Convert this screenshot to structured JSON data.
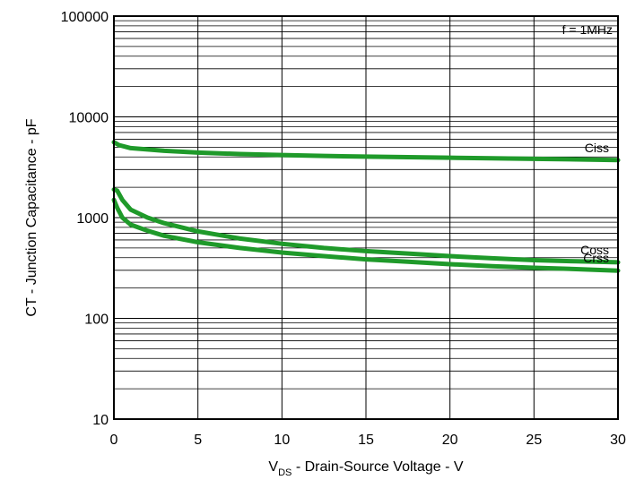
{
  "chart_data": {
    "type": "line",
    "title": "",
    "xlabel": {
      "main": "V",
      "sub": "DS",
      "rest": " - Drain-Source Voltage - V"
    },
    "ylabel": "CT - Junction Capacitance - pF",
    "annotation": "f = 1MHz",
    "xlim": [
      0,
      30
    ],
    "ylim": [
      10,
      100000
    ],
    "yscale": "log",
    "grid": true,
    "x_ticks": [
      "0",
      "5",
      "10",
      "15",
      "20",
      "25",
      "30"
    ],
    "y_ticks": [
      "10",
      "100",
      "1000",
      "10000",
      "100000"
    ],
    "series": [
      {
        "name": "Ciss",
        "x": [
          0,
          0.3,
          1,
          2,
          3,
          5,
          7.5,
          10,
          12.5,
          15,
          17.5,
          20,
          22.5,
          25,
          27.5,
          30
        ],
        "y": [
          5600,
          5250,
          4900,
          4750,
          4600,
          4420,
          4280,
          4180,
          4100,
          4030,
          3980,
          3930,
          3880,
          3830,
          3780,
          3720
        ]
      },
      {
        "name": "Coss",
        "x": [
          0,
          0.2,
          0.5,
          1,
          2,
          3,
          5,
          7.5,
          10,
          12.5,
          15,
          17.5,
          20,
          22.5,
          25,
          27.5,
          30
        ],
        "y": [
          1900,
          1850,
          1500,
          1200,
          1000,
          880,
          730,
          620,
          550,
          500,
          465,
          440,
          415,
          395,
          378,
          368,
          360
        ]
      },
      {
        "name": "Crss",
        "x": [
          0,
          0.2,
          0.5,
          1,
          2,
          3,
          5,
          7.5,
          10,
          12.5,
          15,
          17.5,
          20,
          22.5,
          25,
          27.5,
          30
        ],
        "y": [
          1500,
          1250,
          1000,
          850,
          740,
          660,
          570,
          500,
          450,
          415,
          385,
          365,
          345,
          330,
          318,
          308,
          298
        ]
      }
    ],
    "line_color": "#1f9a2a"
  }
}
